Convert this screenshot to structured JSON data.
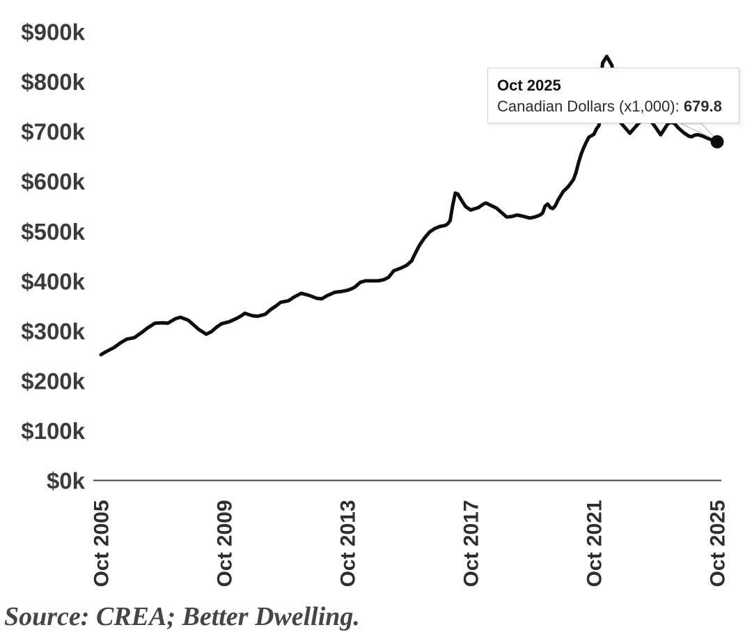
{
  "chart_data": {
    "type": "line",
    "title": "",
    "x_axis": {
      "unit": "months since Oct 2005",
      "tick_months": [
        0,
        48,
        96,
        144,
        192,
        240
      ],
      "tick_labels": [
        "Oct 2005",
        "Oct 2009",
        "Oct 2013",
        "Oct 2017",
        "Oct 2021",
        "Oct 2025"
      ]
    },
    "y_axis": {
      "unit": "Canadian Dollars (x1,000)",
      "min": 0,
      "max": 900,
      "step": 100,
      "tick_labels": [
        "$0k",
        "$100k",
        "$200k",
        "$300k",
        "$400k",
        "$500k",
        "$600k",
        "$700k",
        "$800k",
        "$900k"
      ]
    },
    "grid": false,
    "line_color": "#0d0d0d",
    "series": [
      {
        "name": "Canadian Dollars (x1,000)",
        "points": [
          [
            0,
            253
          ],
          [
            2,
            259
          ],
          [
            5,
            267
          ],
          [
            8,
            278
          ],
          [
            10,
            284
          ],
          [
            13,
            287
          ],
          [
            16,
            298
          ],
          [
            18,
            306
          ],
          [
            21,
            316
          ],
          [
            24,
            317
          ],
          [
            26,
            316
          ],
          [
            29,
            325
          ],
          [
            31,
            328
          ],
          [
            34,
            322
          ],
          [
            36,
            313
          ],
          [
            38,
            304
          ],
          [
            41,
            294
          ],
          [
            43,
            299
          ],
          [
            45,
            308
          ],
          [
            47,
            315
          ],
          [
            50,
            319
          ],
          [
            53,
            326
          ],
          [
            55,
            332
          ],
          [
            56,
            336
          ],
          [
            59,
            331
          ],
          [
            61,
            330
          ],
          [
            64,
            334
          ],
          [
            66,
            343
          ],
          [
            68,
            350
          ],
          [
            70,
            358
          ],
          [
            73,
            361
          ],
          [
            75,
            368
          ],
          [
            78,
            376
          ],
          [
            81,
            372
          ],
          [
            84,
            366
          ],
          [
            86,
            365
          ],
          [
            88,
            371
          ],
          [
            91,
            378
          ],
          [
            94,
            380
          ],
          [
            96,
            382
          ],
          [
            98,
            386
          ],
          [
            99,
            389
          ],
          [
            101,
            398
          ],
          [
            103,
            401
          ],
          [
            108,
            401
          ],
          [
            110,
            403
          ],
          [
            112,
            408
          ],
          [
            114,
            421
          ],
          [
            117,
            427
          ],
          [
            119,
            432
          ],
          [
            121,
            441
          ],
          [
            122,
            452
          ],
          [
            124,
            472
          ],
          [
            126,
            487
          ],
          [
            128,
            499
          ],
          [
            130,
            506
          ],
          [
            132,
            510
          ],
          [
            134,
            512
          ],
          [
            135,
            515
          ],
          [
            136,
            522
          ],
          [
            137,
            553
          ],
          [
            138,
            577
          ],
          [
            139,
            575
          ],
          [
            140,
            566
          ],
          [
            142,
            550
          ],
          [
            144,
            543
          ],
          [
            147,
            548
          ],
          [
            149,
            555
          ],
          [
            150,
            557
          ],
          [
            152,
            552
          ],
          [
            154,
            547
          ],
          [
            156,
            538
          ],
          [
            158,
            529
          ],
          [
            160,
            530
          ],
          [
            162,
            533
          ],
          [
            164,
            531
          ],
          [
            167,
            527
          ],
          [
            169,
            529
          ],
          [
            171,
            533
          ],
          [
            172,
            537
          ],
          [
            173,
            551
          ],
          [
            174,
            555
          ],
          [
            175,
            548
          ],
          [
            176,
            546
          ],
          [
            177,
            552
          ],
          [
            178,
            563
          ],
          [
            180,
            580
          ],
          [
            182,
            590
          ],
          [
            184,
            604
          ],
          [
            185,
            618
          ],
          [
            186,
            638
          ],
          [
            187,
            655
          ],
          [
            188,
            668
          ],
          [
            189,
            679
          ],
          [
            190,
            689
          ],
          [
            192,
            695
          ],
          [
            193,
            706
          ],
          [
            194,
            713
          ],
          [
            194.6,
            795
          ],
          [
            195.4,
            838
          ],
          [
            197,
            851
          ],
          [
            199,
            833
          ],
          [
            199.8,
            800
          ],
          [
            200.6,
            762
          ],
          [
            201.4,
            730
          ],
          [
            202.6,
            717
          ],
          [
            206,
            697
          ],
          [
            209.4,
            717
          ],
          [
            211,
            723
          ],
          [
            213,
            726
          ],
          [
            214.9,
            717
          ],
          [
            218,
            694
          ],
          [
            220.9,
            717
          ],
          [
            222,
            719
          ],
          [
            223.3,
            717
          ],
          [
            225,
            707
          ],
          [
            227,
            698
          ],
          [
            229,
            691
          ],
          [
            230,
            690
          ],
          [
            231.5,
            693.5
          ],
          [
            232.5,
            694
          ],
          [
            234,
            692
          ],
          [
            236,
            687.5
          ],
          [
            238,
            683.5
          ],
          [
            240,
            679.8
          ]
        ]
      }
    ]
  },
  "tooltip": {
    "title": "Oct 2025",
    "label": "Canadian Dollars (x1,000): ",
    "value": "679.8"
  },
  "source_note": "Source: CREA; Better Dwelling."
}
